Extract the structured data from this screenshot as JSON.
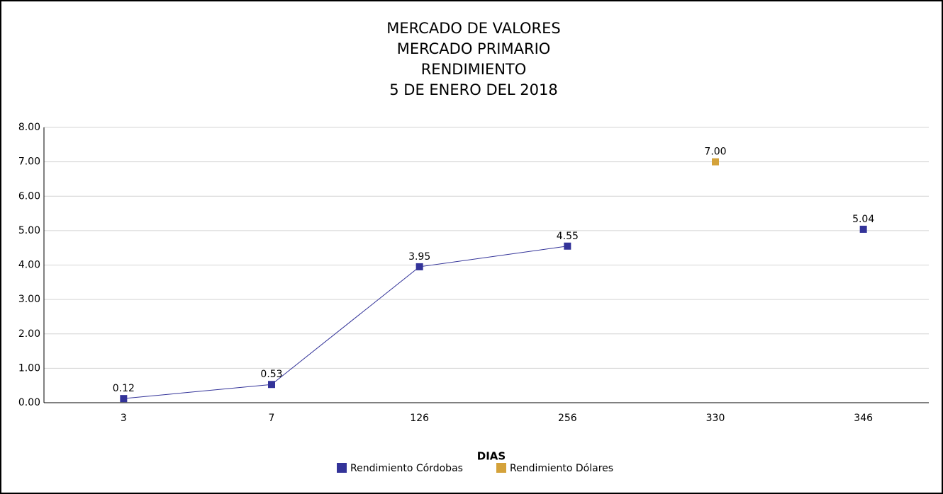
{
  "chart_data": {
    "type": "line",
    "title": [
      "MERCADO DE VALORES",
      "MERCADO PRIMARIO",
      "RENDIMIENTO",
      "5 DE ENERO DEL 2018"
    ],
    "x_label": "DIAS",
    "categories": [
      "3",
      "7",
      "126",
      "256",
      "330",
      "346"
    ],
    "series": [
      {
        "name": "Rendimiento Córdobas",
        "color": "#333399",
        "values": [
          0.12,
          0.53,
          3.95,
          4.55,
          null,
          5.04
        ]
      },
      {
        "name": "Rendimiento Dólares",
        "color": "#d4a23a",
        "values": [
          null,
          null,
          null,
          null,
          7,
          null
        ],
        "value_labels": [
          null,
          null,
          null,
          null,
          "7.00",
          null
        ]
      }
    ],
    "ylim": [
      0,
      8
    ],
    "yticks": [
      {
        "value": 0,
        "label": "0.00"
      },
      {
        "value": 1,
        "label": "1.00"
      },
      {
        "value": 2,
        "label": "2.00"
      },
      {
        "value": 3,
        "label": "3.00"
      },
      {
        "value": 4,
        "label": "4.00"
      },
      {
        "value": 5,
        "label": "5.00"
      },
      {
        "value": 6,
        "label": "6.00"
      },
      {
        "value": 7,
        "label": "7.00"
      },
      {
        "value": 8,
        "label": "8.00"
      }
    ],
    "grid": true,
    "legend": "bottom"
  }
}
